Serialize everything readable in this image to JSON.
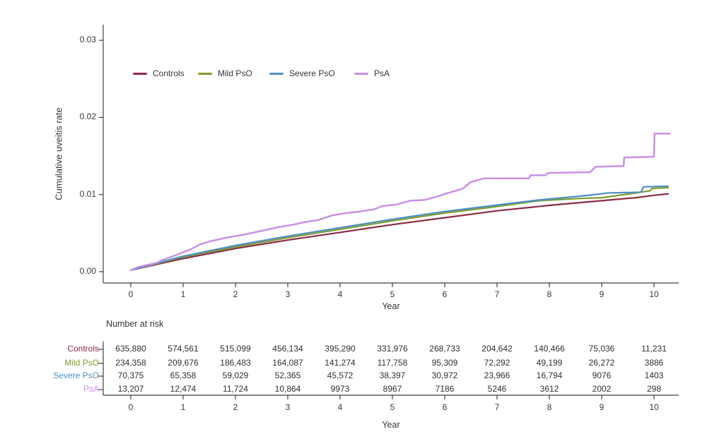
{
  "chart": {
    "ylabel": "Cumulative uveitis rate",
    "xlabel": "Year"
  },
  "chart_data": {
    "type": "line",
    "title": "",
    "xlabel": "Year",
    "ylabel": "Cumulative uveitis rate",
    "xlim": [
      0,
      10.47
    ],
    "ylim": [
      0,
      0.031
    ],
    "xticks": [
      0,
      1,
      2,
      3,
      4,
      5,
      6,
      7,
      8,
      9,
      10
    ],
    "yticks": [
      0,
      0.01,
      0.02,
      0.03
    ],
    "grid": false,
    "legend_position": "top-inside",
    "series": [
      {
        "name": "Controls",
        "color": "#8c2b44",
        "points": [
          [
            0,
            0.0002
          ],
          [
            1,
            0.0017
          ],
          [
            2,
            0.003
          ],
          [
            3,
            0.0041
          ],
          [
            4,
            0.0051
          ],
          [
            5,
            0.0061
          ],
          [
            6,
            0.007
          ],
          [
            7,
            0.0079
          ],
          [
            8,
            0.0086
          ],
          [
            9,
            0.0092
          ],
          [
            9.65,
            0.0096
          ],
          [
            10,
            0.0099
          ],
          [
            10.27,
            0.0101
          ]
        ]
      },
      {
        "name": "Mild PsO",
        "color": "#7e9c30",
        "points": [
          [
            0,
            0.0002
          ],
          [
            1,
            0.0019
          ],
          [
            2,
            0.0032
          ],
          [
            3,
            0.0044
          ],
          [
            4,
            0.0055
          ],
          [
            5,
            0.0066
          ],
          [
            6,
            0.0076
          ],
          [
            6.95,
            0.0084
          ],
          [
            7.8,
            0.0092
          ],
          [
            8.6,
            0.0095
          ],
          [
            9,
            0.0096
          ],
          [
            9.65,
            0.0102
          ],
          [
            9.93,
            0.0105
          ],
          [
            9.96,
            0.0108
          ],
          [
            10.27,
            0.0109
          ]
        ]
      },
      {
        "name": "Severe PsO",
        "color": "#4e8fc4",
        "points": [
          [
            0,
            0.0002
          ],
          [
            1,
            0.002
          ],
          [
            2,
            0.0034
          ],
          [
            3,
            0.0046
          ],
          [
            4,
            0.0057
          ],
          [
            5,
            0.0068
          ],
          [
            6,
            0.0078
          ],
          [
            6.95,
            0.0086
          ],
          [
            7.8,
            0.0093
          ],
          [
            8.6,
            0.0098
          ],
          [
            9,
            0.0101
          ],
          [
            9.1,
            0.0102
          ],
          [
            9.75,
            0.0103
          ],
          [
            9.8,
            0.011
          ],
          [
            10.27,
            0.0111
          ]
        ]
      },
      {
        "name": "PsA",
        "color": "#c98fe5",
        "points": [
          [
            0,
            0.0002
          ],
          [
            0.14,
            0.0006
          ],
          [
            0.47,
            0.0011
          ],
          [
            0.64,
            0.0016
          ],
          [
            0.81,
            0.002
          ],
          [
            0.99,
            0.0025
          ],
          [
            1.15,
            0.0029
          ],
          [
            1.31,
            0.0035
          ],
          [
            1.49,
            0.0039
          ],
          [
            1.82,
            0.0044
          ],
          [
            2.16,
            0.0048
          ],
          [
            2.5,
            0.0053
          ],
          [
            2.84,
            0.0058
          ],
          [
            3.11,
            0.0061
          ],
          [
            3.31,
            0.0064
          ],
          [
            3.58,
            0.0067
          ],
          [
            3.85,
            0.0073
          ],
          [
            4.12,
            0.0076
          ],
          [
            4.39,
            0.0078
          ],
          [
            4.66,
            0.0081
          ],
          [
            4.8,
            0.0085
          ],
          [
            5.07,
            0.0087
          ],
          [
            5.34,
            0.0092
          ],
          [
            5.61,
            0.0093
          ],
          [
            5.88,
            0.0098
          ],
          [
            6.01,
            0.0101
          ],
          [
            6.22,
            0.0105
          ],
          [
            6.35,
            0.0108
          ],
          [
            6.49,
            0.0116
          ],
          [
            6.76,
            0.0121
          ],
          [
            7.61,
            0.0121
          ],
          [
            7.64,
            0.0125
          ],
          [
            7.93,
            0.0125
          ],
          [
            7.97,
            0.0128
          ],
          [
            8.78,
            0.0129
          ],
          [
            8.88,
            0.0136
          ],
          [
            9.42,
            0.0137
          ],
          [
            9.43,
            0.0148
          ],
          [
            10.0,
            0.0149
          ],
          [
            10.01,
            0.0179
          ],
          [
            10.3,
            0.0179
          ]
        ]
      }
    ]
  },
  "risk_table": {
    "title": "Number at risk",
    "xlabel": "Year",
    "xticks": [
      0,
      1,
      2,
      3,
      4,
      5,
      6,
      7,
      8,
      9,
      10
    ],
    "rows": [
      {
        "label": "Controls",
        "color": "#8c2b44",
        "values": [
          "635,880",
          "574,561",
          "515,099",
          "456,134",
          "395,290",
          "331,976",
          "268,733",
          "204,642",
          "140,466",
          "75,036",
          "11,231"
        ]
      },
      {
        "label": "Mild PsO",
        "color": "#7e9c30",
        "values": [
          "234,358",
          "209,676",
          "186,483",
          "164,087",
          "141,274",
          "117,758",
          "95,309",
          "72,292",
          "49,199",
          "26,272",
          "3886"
        ]
      },
      {
        "label": "Severe PsO",
        "color": "#4e8fc4",
        "values": [
          "70,375",
          "65,358",
          "59,029",
          "52,365",
          "45,572",
          "38,397",
          "30,972",
          "23,966",
          "16,794",
          "9076",
          "1403"
        ]
      },
      {
        "label": "PsA",
        "color": "#c98fe5",
        "values": [
          "13,207",
          "12,474",
          "11,724",
          "10,864",
          "9973",
          "8967",
          "7186",
          "5246",
          "3612",
          "2002",
          "298"
        ]
      }
    ]
  },
  "colors": {
    "axis": "#3f3f3f",
    "text": "#363636"
  }
}
